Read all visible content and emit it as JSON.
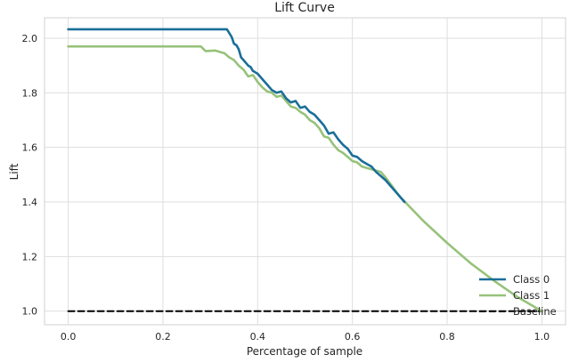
{
  "chart_data": {
    "type": "line",
    "title": "Lift Curve",
    "xlabel": "Percentage of sample",
    "ylabel": "Lift",
    "xlim": [
      -0.05,
      1.05
    ],
    "ylim": [
      0.95,
      2.075
    ],
    "xticks": [
      "0.0",
      "0.2",
      "0.4",
      "0.6",
      "0.8",
      "1.0"
    ],
    "xtick_values": [
      0.0,
      0.2,
      0.4,
      0.6,
      0.8,
      1.0
    ],
    "yticks": [
      "1.0",
      "1.2",
      "1.4",
      "1.6",
      "1.8",
      "2.0"
    ],
    "ytick_values": [
      1.0,
      1.2,
      1.4,
      1.6,
      1.8,
      2.0
    ],
    "grid": true,
    "legend_position": "bottom-right",
    "series": [
      {
        "name": "Class 0",
        "color": "#1a6e99",
        "style": "solid",
        "x": [
          0.0,
          0.05,
          0.1,
          0.15,
          0.2,
          0.25,
          0.3,
          0.335,
          0.345,
          0.35,
          0.355,
          0.36,
          0.365,
          0.37,
          0.375,
          0.38,
          0.385,
          0.39,
          0.395,
          0.4,
          0.41,
          0.42,
          0.43,
          0.44,
          0.45,
          0.46,
          0.47,
          0.48,
          0.49,
          0.5,
          0.51,
          0.52,
          0.53,
          0.54,
          0.55,
          0.56,
          0.57,
          0.58,
          0.59,
          0.6,
          0.61,
          0.62,
          0.63,
          0.64,
          0.65,
          0.66,
          0.67,
          0.68,
          0.69,
          0.7,
          0.71
        ],
        "y": [
          2.033,
          2.033,
          2.033,
          2.033,
          2.033,
          2.033,
          2.033,
          2.033,
          2.005,
          1.98,
          1.975,
          1.96,
          1.93,
          1.92,
          1.91,
          1.9,
          1.895,
          1.88,
          1.875,
          1.87,
          1.85,
          1.83,
          1.81,
          1.8,
          1.805,
          1.78,
          1.765,
          1.77,
          1.745,
          1.75,
          1.73,
          1.72,
          1.7,
          1.68,
          1.65,
          1.655,
          1.63,
          1.61,
          1.595,
          1.57,
          1.565,
          1.55,
          1.54,
          1.53,
          1.51,
          1.495,
          1.48,
          1.46,
          1.44,
          1.42,
          1.4
        ]
      },
      {
        "name": "Class 1",
        "color": "#97c27a",
        "style": "solid",
        "x": [
          0.0,
          0.05,
          0.1,
          0.15,
          0.2,
          0.25,
          0.28,
          0.29,
          0.31,
          0.33,
          0.34,
          0.35,
          0.36,
          0.37,
          0.38,
          0.39,
          0.4,
          0.41,
          0.42,
          0.43,
          0.44,
          0.45,
          0.46,
          0.47,
          0.48,
          0.49,
          0.5,
          0.51,
          0.52,
          0.53,
          0.54,
          0.55,
          0.56,
          0.57,
          0.58,
          0.59,
          0.6,
          0.61,
          0.62,
          0.63,
          0.64,
          0.65,
          0.66,
          0.67,
          0.7,
          0.75,
          0.8,
          0.85,
          0.9,
          0.95,
          1.0
        ],
        "y": [
          1.97,
          1.97,
          1.97,
          1.97,
          1.97,
          1.97,
          1.97,
          1.953,
          1.955,
          1.945,
          1.93,
          1.92,
          1.9,
          1.885,
          1.86,
          1.865,
          1.84,
          1.82,
          1.805,
          1.8,
          1.785,
          1.79,
          1.77,
          1.75,
          1.745,
          1.73,
          1.72,
          1.7,
          1.69,
          1.67,
          1.64,
          1.635,
          1.61,
          1.59,
          1.58,
          1.565,
          1.55,
          1.545,
          1.53,
          1.525,
          1.52,
          1.515,
          1.51,
          1.49,
          1.42,
          1.33,
          1.25,
          1.175,
          1.11,
          1.05,
          1.0
        ]
      },
      {
        "name": "Baseline",
        "color": "#000000",
        "style": "dashed",
        "x": [
          0.0,
          1.0
        ],
        "y": [
          1.0,
          1.0
        ]
      }
    ]
  }
}
